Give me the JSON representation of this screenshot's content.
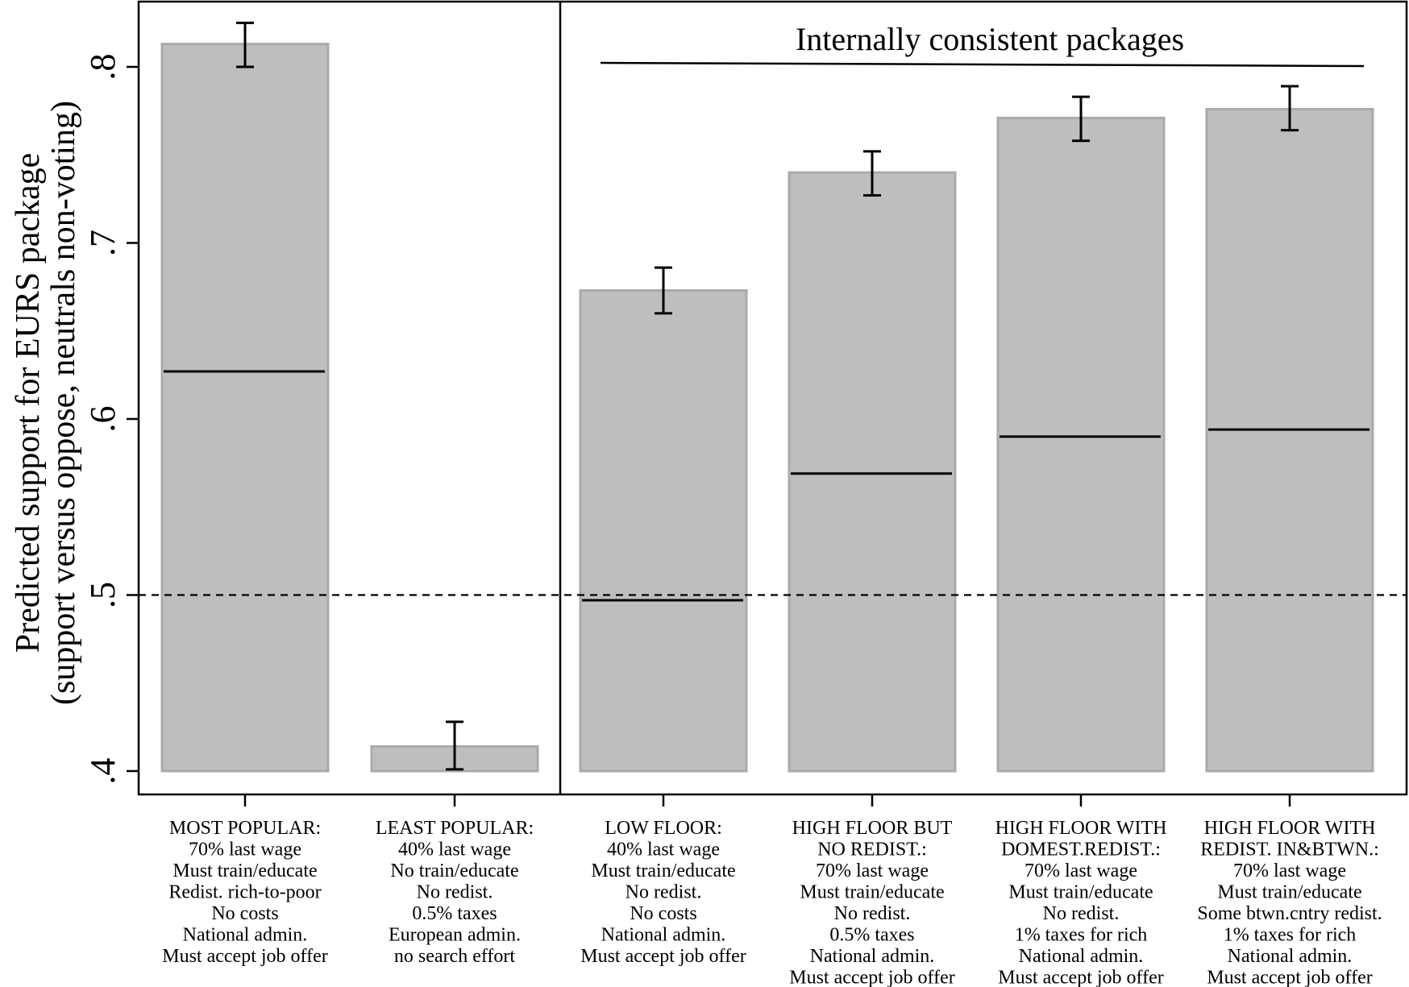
{
  "chart_data": {
    "type": "bar",
    "ylabel": [
      "Predicted support for EURS package",
      "(support versus oppose, neutrals non-voting)"
    ],
    "ylim": [
      0.4,
      0.8
    ],
    "yticks": [
      {
        "value": 0.4,
        "label": ".4"
      },
      {
        "value": 0.5,
        "label": ".5"
      },
      {
        "value": 0.6,
        "label": ".6"
      },
      {
        "value": 0.7,
        "label": ".7"
      },
      {
        "value": 0.8,
        "label": ".8"
      }
    ],
    "reference_line": 0.5,
    "grid": false,
    "annotation": "Internally consistent packages",
    "bars": [
      {
        "name": "MOST POPULAR",
        "value": 0.813,
        "ci": [
          0.8,
          0.825
        ],
        "inner_line": 0.627,
        "label_lines": [
          "MOST POPULAR:",
          "70% last wage",
          "Must train/educate",
          "Redist. rich-to-poor",
          "No costs",
          "National admin.",
          "Must accept job offer"
        ]
      },
      {
        "name": "LEAST POPULAR",
        "value": 0.414,
        "ci": [
          0.401,
          0.428
        ],
        "inner_line": null,
        "label_lines": [
          "LEAST POPULAR:",
          "40% last wage",
          "No train/educate",
          "No redist.",
          "0.5% taxes",
          "European admin.",
          "no search effort"
        ]
      },
      {
        "name": "LOW FLOOR",
        "value": 0.673,
        "ci": [
          0.66,
          0.686
        ],
        "inner_line": 0.497,
        "label_lines": [
          "LOW FLOOR:",
          "40% last wage",
          "Must train/educate",
          "No redist.",
          "No costs",
          "National admin.",
          "Must accept job offer"
        ]
      },
      {
        "name": "HIGH FLOOR BUT NO REDIST.",
        "value": 0.74,
        "ci": [
          0.727,
          0.752
        ],
        "inner_line": 0.569,
        "label_lines": [
          "HIGH FLOOR BUT",
          "NO REDIST.:",
          "70% last wage",
          "Must train/educate",
          "No redist.",
          "0.5% taxes",
          "National admin.",
          "Must accept job offer"
        ]
      },
      {
        "name": "HIGH FLOOR WITH DOMEST.REDIST.",
        "value": 0.771,
        "ci": [
          0.758,
          0.783
        ],
        "inner_line": 0.59,
        "label_lines": [
          "HIGH FLOOR WITH",
          "DOMEST.REDIST.:",
          "70% last wage",
          "Must train/educate",
          "No redist.",
          "1% taxes for rich",
          "National admin.",
          "Must accept job offer"
        ]
      },
      {
        "name": "HIGH FLOOR WITH REDIST. IN&BTWN.",
        "value": 0.776,
        "ci": [
          0.764,
          0.789
        ],
        "inner_line": 0.594,
        "label_lines": [
          "HIGH FLOOR WITH",
          "REDIST. IN&BTWN.:",
          "70% last wage",
          "Must train/educate",
          "Some btwn.cntry redist.",
          "1% taxes for rich",
          "National admin.",
          "Must accept job offer"
        ]
      }
    ],
    "colors": {
      "bar_fill": "#bebebe",
      "bar_stroke": "#aaaaaa",
      "line": "#000000"
    }
  }
}
